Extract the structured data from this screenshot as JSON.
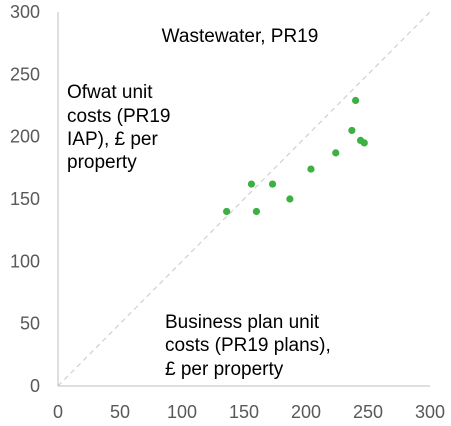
{
  "chart_data": {
    "type": "scatter",
    "title": "Wastewater, PR19",
    "ylabel_lines": [
      "Ofwat unit",
      "costs (PR19",
      "IAP), £ per",
      "property"
    ],
    "xlabel_lines": [
      "Business plan unit",
      "costs (PR19 plans),",
      "£ per property"
    ],
    "xlim": [
      0,
      300
    ],
    "ylim": [
      0,
      300
    ],
    "xticks": [
      "0",
      "50",
      "100",
      "150",
      "200",
      "250",
      "300"
    ],
    "yticks": [
      "0",
      "50",
      "100",
      "150",
      "200",
      "250",
      "300"
    ],
    "grid": false,
    "reference_line": "y = x (dashed, light grey)",
    "colors": {
      "points": "#3cb043",
      "axis": "#bfbfbf",
      "diagonal": "#d0d0d0",
      "tick_text": "#595959"
    },
    "series": [
      {
        "points": [
          {
            "x": 136,
            "y": 140
          },
          {
            "x": 156,
            "y": 162
          },
          {
            "x": 160,
            "y": 140
          },
          {
            "x": 173,
            "y": 162
          },
          {
            "x": 187,
            "y": 150
          },
          {
            "x": 204,
            "y": 174
          },
          {
            "x": 224,
            "y": 187
          },
          {
            "x": 237,
            "y": 205
          },
          {
            "x": 240,
            "y": 229
          },
          {
            "x": 244,
            "y": 197
          },
          {
            "x": 247,
            "y": 195
          }
        ]
      }
    ]
  }
}
